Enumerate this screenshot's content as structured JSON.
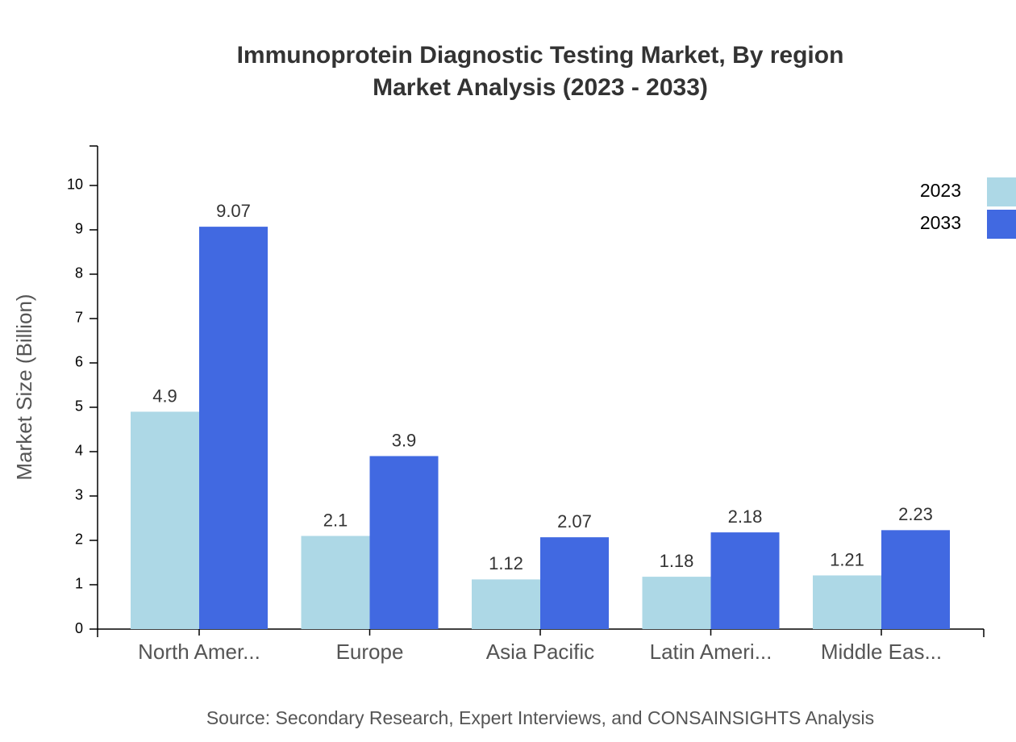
{
  "chart_data": {
    "type": "bar",
    "title": "Immunoprotein Diagnostic Testing Market, By region",
    "subtitle": "Market Analysis (2023 - 2033)",
    "y_label": "Market Size (Billion)",
    "source": "Source: Secondary Research, Expert Interviews, and CONSAINSIGHTS Analysis",
    "categories": [
      "North Amer...",
      "Europe",
      "Asia Pacific",
      "Latin Ameri...",
      "Middle Eas..."
    ],
    "series": [
      {
        "name": "2023",
        "color": "#add8e6",
        "values": [
          4.9,
          2.1,
          1.12,
          1.18,
          1.21
        ]
      },
      {
        "name": "2033",
        "color": "#4169e1",
        "values": [
          9.07,
          3.9,
          2.07,
          2.18,
          2.23
        ]
      }
    ],
    "ylim": [
      0,
      10.89
    ],
    "yticks": [
      0,
      1,
      2,
      3,
      4,
      5,
      6,
      7,
      8,
      9,
      10
    ],
    "legend": "top-right"
  }
}
